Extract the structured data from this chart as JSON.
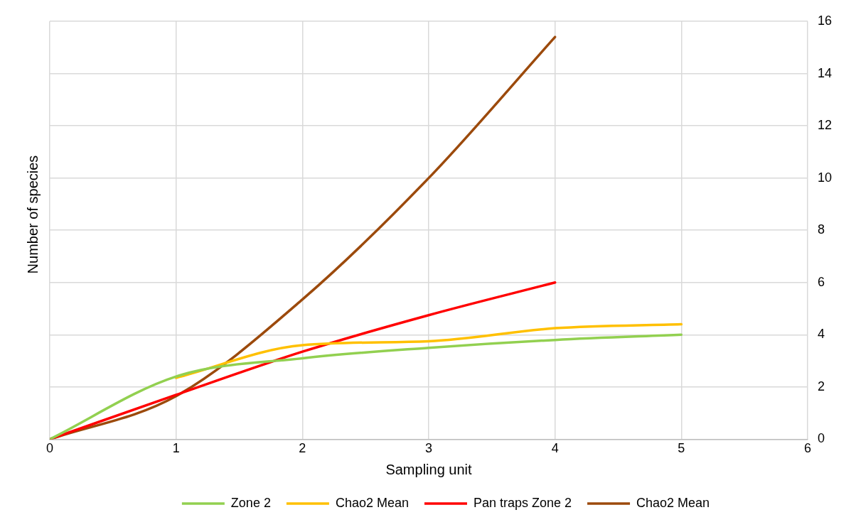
{
  "chart_data": {
    "type": "line",
    "xlabel": "Sampling unit",
    "ylabel": "Number of species",
    "x": [
      0,
      1,
      2,
      3,
      4,
      5
    ],
    "series": [
      {
        "name": "Zone 2",
        "color": "#92d050",
        "values": [
          0,
          2.4,
          3.1,
          3.5,
          3.8,
          4.0
        ]
      },
      {
        "name": "Chao2 Mean",
        "color": "#ffc000",
        "values": [
          null,
          2.35,
          3.6,
          3.75,
          4.25,
          4.4
        ]
      },
      {
        "name": "Pan traps Zone 2",
        "color": "#ff0000",
        "values": [
          0,
          1.7,
          3.35,
          4.75,
          6.0,
          null
        ]
      },
      {
        "name": "Chao2 Mean",
        "color": "#9c4a0c",
        "values": [
          0,
          1.65,
          5.35,
          10.0,
          15.4,
          null
        ]
      }
    ],
    "xlim": [
      0,
      6
    ],
    "xticks": [
      0,
      1,
      2,
      3,
      4,
      5,
      6
    ],
    "ylim": [
      0,
      16
    ],
    "yticks": [
      0,
      2,
      4,
      6,
      8,
      10,
      12,
      14,
      16
    ],
    "grid": true,
    "legend": "bottom",
    "marker": "none",
    "line_style": "solid"
  }
}
